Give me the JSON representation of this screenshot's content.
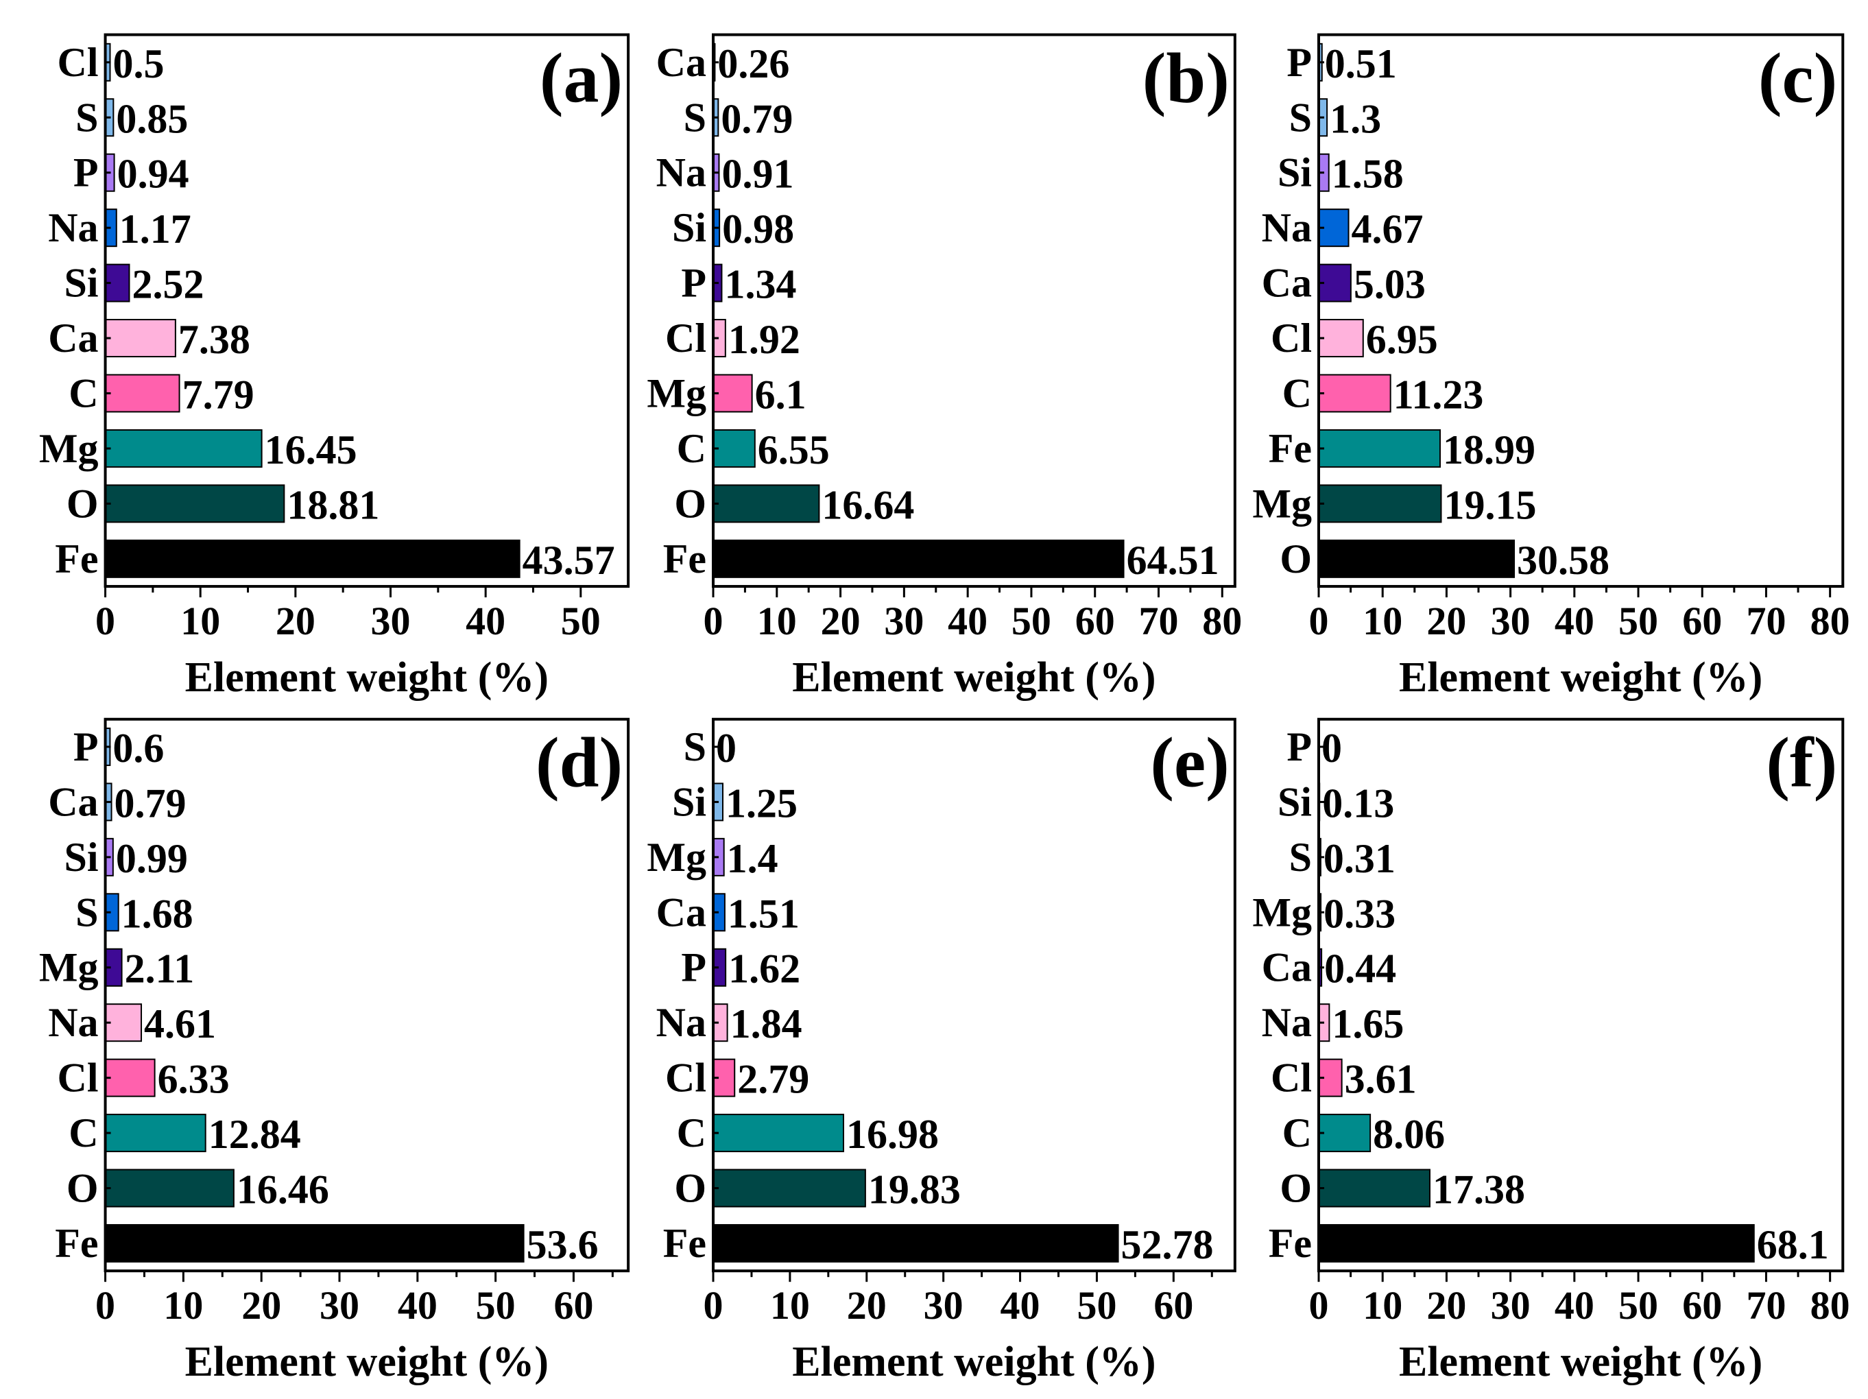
{
  "colors": {
    "rank_colors": [
      "#000000",
      "#004746",
      "#008b8c",
      "#ff61ad",
      "#ffb2dc",
      "#3e0a95",
      "#0066d8",
      "#a97af3",
      "#7fb8ea",
      "#7fb8ea"
    ],
    "frame": "#000000"
  },
  "chart_data": [
    {
      "type": "bar",
      "orientation": "horizontal",
      "panel_label": "(a)",
      "categories": [
        "Fe",
        "O",
        "Mg",
        "C",
        "Ca",
        "Si",
        "Na",
        "P",
        "S",
        "Cl"
      ],
      "values": [
        43.57,
        18.81,
        16.45,
        7.79,
        7.38,
        2.52,
        1.17,
        0.94,
        0.85,
        0.5
      ],
      "value_labels": [
        "43.57",
        "18.81",
        "16.45",
        "7.79",
        "7.38",
        "2.52",
        "1.17",
        "0.94",
        "0.85",
        "0.5"
      ],
      "xlabel": "Element weight (%)",
      "xlim": [
        0,
        55
      ],
      "xticks": [
        0,
        10,
        20,
        30,
        40,
        50
      ],
      "xtick_labels": [
        "0",
        "10",
        "20",
        "30",
        "40",
        "50"
      ]
    },
    {
      "type": "bar",
      "orientation": "horizontal",
      "panel_label": "(b)",
      "categories": [
        "Fe",
        "O",
        "C",
        "Mg",
        "Cl",
        "P",
        "Si",
        "Na",
        "S",
        "Ca"
      ],
      "values": [
        64.51,
        16.64,
        6.55,
        6.1,
        1.92,
        1.34,
        0.98,
        0.91,
        0.79,
        0.26
      ],
      "value_labels": [
        "64.51",
        "16.64",
        "6.55",
        "6.1",
        "1.92",
        "1.34",
        "0.98",
        "0.91",
        "0.79",
        "0.26"
      ],
      "xlabel": "Element weight (%)",
      "xlim": [
        0,
        82
      ],
      "xticks": [
        0,
        10,
        20,
        30,
        40,
        50,
        60,
        70,
        80
      ],
      "xtick_labels": [
        "0",
        "10",
        "20",
        "30",
        "40",
        "50",
        "60",
        "70",
        "80"
      ]
    },
    {
      "type": "bar",
      "orientation": "horizontal",
      "panel_label": "(c)",
      "categories": [
        "O",
        "Mg",
        "Fe",
        "C",
        "Cl",
        "Ca",
        "Na",
        "Si",
        "S",
        "P"
      ],
      "values": [
        30.58,
        19.15,
        18.99,
        11.23,
        6.95,
        5.03,
        4.67,
        1.58,
        1.3,
        0.51
      ],
      "value_labels": [
        "30.58",
        "19.15",
        "18.99",
        "11.23",
        "6.95",
        "5.03",
        "4.67",
        "1.58",
        "1.3",
        "0.51"
      ],
      "xlabel": "Element weight (%)",
      "xlim": [
        0,
        82
      ],
      "xticks": [
        0,
        10,
        20,
        30,
        40,
        50,
        60,
        70,
        80
      ],
      "xtick_labels": [
        "0",
        "10",
        "20",
        "30",
        "40",
        "50",
        "60",
        "70",
        "80"
      ]
    },
    {
      "type": "bar",
      "orientation": "horizontal",
      "panel_label": "(d)",
      "categories": [
        "Fe",
        "O",
        "C",
        "Cl",
        "Na",
        "Mg",
        "S",
        "Si",
        "Ca",
        "P"
      ],
      "values": [
        53.6,
        16.46,
        12.84,
        6.33,
        4.61,
        2.11,
        1.68,
        0.99,
        0.79,
        0.6
      ],
      "value_labels": [
        "53.6",
        "16.46",
        "12.84",
        "6.33",
        "4.61",
        "2.11",
        "1.68",
        "0.99",
        "0.79",
        "0.6"
      ],
      "xlabel": "Element weight (%)",
      "xlim": [
        0,
        67
      ],
      "xticks": [
        0,
        10,
        20,
        30,
        40,
        50,
        60
      ],
      "xtick_labels": [
        "0",
        "10",
        "20",
        "30",
        "40",
        "50",
        "60"
      ]
    },
    {
      "type": "bar",
      "orientation": "horizontal",
      "panel_label": "(e)",
      "categories": [
        "Fe",
        "O",
        "C",
        "Cl",
        "Na",
        "P",
        "Ca",
        "Mg",
        "Si",
        "S"
      ],
      "values": [
        52.78,
        19.83,
        16.98,
        2.79,
        1.84,
        1.62,
        1.51,
        1.4,
        1.25,
        0
      ],
      "value_labels": [
        "52.78",
        "19.83",
        "16.98",
        "2.79",
        "1.84",
        "1.62",
        "1.51",
        "1.4",
        "1.25",
        "0"
      ],
      "xlabel": "Element weight (%)",
      "xlim": [
        0,
        68
      ],
      "xticks": [
        0,
        10,
        20,
        30,
        40,
        50,
        60
      ],
      "xtick_labels": [
        "0",
        "10",
        "20",
        "30",
        "40",
        "50",
        "60"
      ]
    },
    {
      "type": "bar",
      "orientation": "horizontal",
      "panel_label": "(f)",
      "categories": [
        "Fe",
        "O",
        "C",
        "Cl",
        "Na",
        "Ca",
        "Mg",
        "S",
        "Si",
        "P"
      ],
      "values": [
        68.1,
        17.38,
        8.06,
        3.61,
        1.65,
        0.44,
        0.33,
        0.31,
        0.13,
        0
      ],
      "value_labels": [
        "68.1",
        "17.38",
        "8.06",
        "3.61",
        "1.65",
        "0.44",
        "0.33",
        "0.31",
        "0.13",
        "0"
      ],
      "xlabel": "Element weight (%)",
      "xlim": [
        0,
        82
      ],
      "xticks": [
        0,
        10,
        20,
        30,
        40,
        50,
        60,
        70,
        80
      ],
      "xtick_labels": [
        "0",
        "10",
        "20",
        "30",
        "40",
        "50",
        "60",
        "70",
        "80"
      ]
    }
  ]
}
